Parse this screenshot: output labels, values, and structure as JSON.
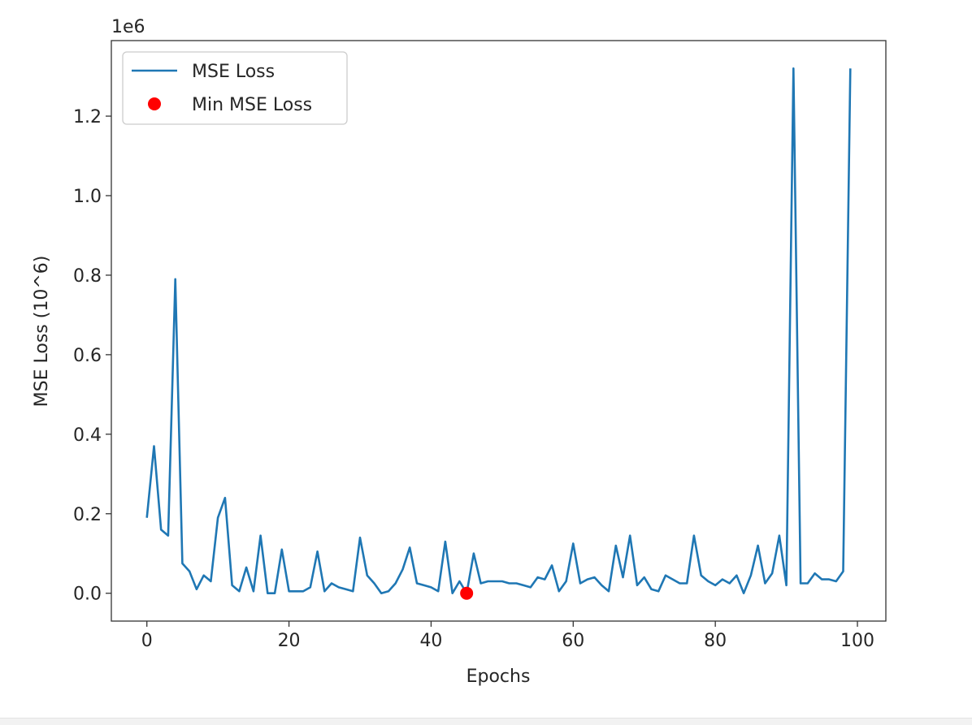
{
  "chart_data": {
    "type": "line",
    "title": "",
    "xlabel": "Epochs",
    "ylabel": "MSE Loss (10^6)",
    "offset_text": "1e6",
    "xlim": [
      -5,
      104
    ],
    "ylim": [
      -70000,
      1390000
    ],
    "xticks": [
      0,
      20,
      40,
      60,
      80,
      100
    ],
    "xtick_labels": [
      "0",
      "20",
      "40",
      "60",
      "80",
      "100"
    ],
    "yticks": [
      0,
      200000,
      400000,
      600000,
      800000,
      1000000,
      1200000
    ],
    "ytick_labels": [
      "0.0",
      "0.2",
      "0.4",
      "0.6",
      "0.8",
      "1.0",
      "1.2"
    ],
    "grid": false,
    "legend_position": "upper-left",
    "series": [
      {
        "name": "MSE Loss",
        "kind": "line",
        "color": "#1f77b4",
        "x": [
          0,
          1,
          2,
          3,
          4,
          5,
          6,
          7,
          8,
          9,
          10,
          11,
          12,
          13,
          14,
          15,
          16,
          17,
          18,
          19,
          20,
          21,
          22,
          23,
          24,
          25,
          26,
          27,
          28,
          29,
          30,
          31,
          32,
          33,
          34,
          35,
          36,
          37,
          38,
          39,
          40,
          41,
          42,
          43,
          44,
          45,
          46,
          47,
          48,
          49,
          50,
          51,
          52,
          53,
          54,
          55,
          56,
          57,
          58,
          59,
          60,
          61,
          62,
          63,
          64,
          65,
          66,
          67,
          68,
          69,
          70,
          71,
          72,
          73,
          74,
          75,
          76,
          77,
          78,
          79,
          80,
          81,
          82,
          83,
          84,
          85,
          86,
          87,
          88,
          89,
          90,
          91,
          92,
          93,
          94,
          95,
          96,
          97,
          98,
          99
        ],
        "y": [
          190000,
          370000,
          160000,
          145000,
          790000,
          75000,
          55000,
          10000,
          45000,
          30000,
          190000,
          240000,
          20000,
          5000,
          65000,
          5000,
          145000,
          0,
          0,
          110000,
          5000,
          5000,
          5000,
          15000,
          105000,
          5000,
          25000,
          15000,
          10000,
          5000,
          140000,
          45000,
          25000,
          0,
          5000,
          25000,
          60000,
          115000,
          25000,
          20000,
          15000,
          5000,
          130000,
          0,
          30000,
          0,
          100000,
          25000,
          30000,
          30000,
          30000,
          25000,
          25000,
          20000,
          15000,
          40000,
          35000,
          70000,
          5000,
          30000,
          125000,
          25000,
          35000,
          40000,
          20000,
          5000,
          120000,
          40000,
          145000,
          20000,
          40000,
          10000,
          5000,
          45000,
          35000,
          25000,
          25000,
          145000,
          45000,
          30000,
          20000,
          35000,
          25000,
          45000,
          0,
          45000,
          120000,
          25000,
          50000,
          145000,
          20000,
          1320000,
          25000,
          25000,
          50000,
          35000,
          35000,
          30000,
          55000,
          1320000
        ]
      },
      {
        "name": "Min MSE Loss",
        "kind": "scatter",
        "color": "#ff0000",
        "x": [
          45
        ],
        "y": [
          0
        ]
      }
    ]
  }
}
